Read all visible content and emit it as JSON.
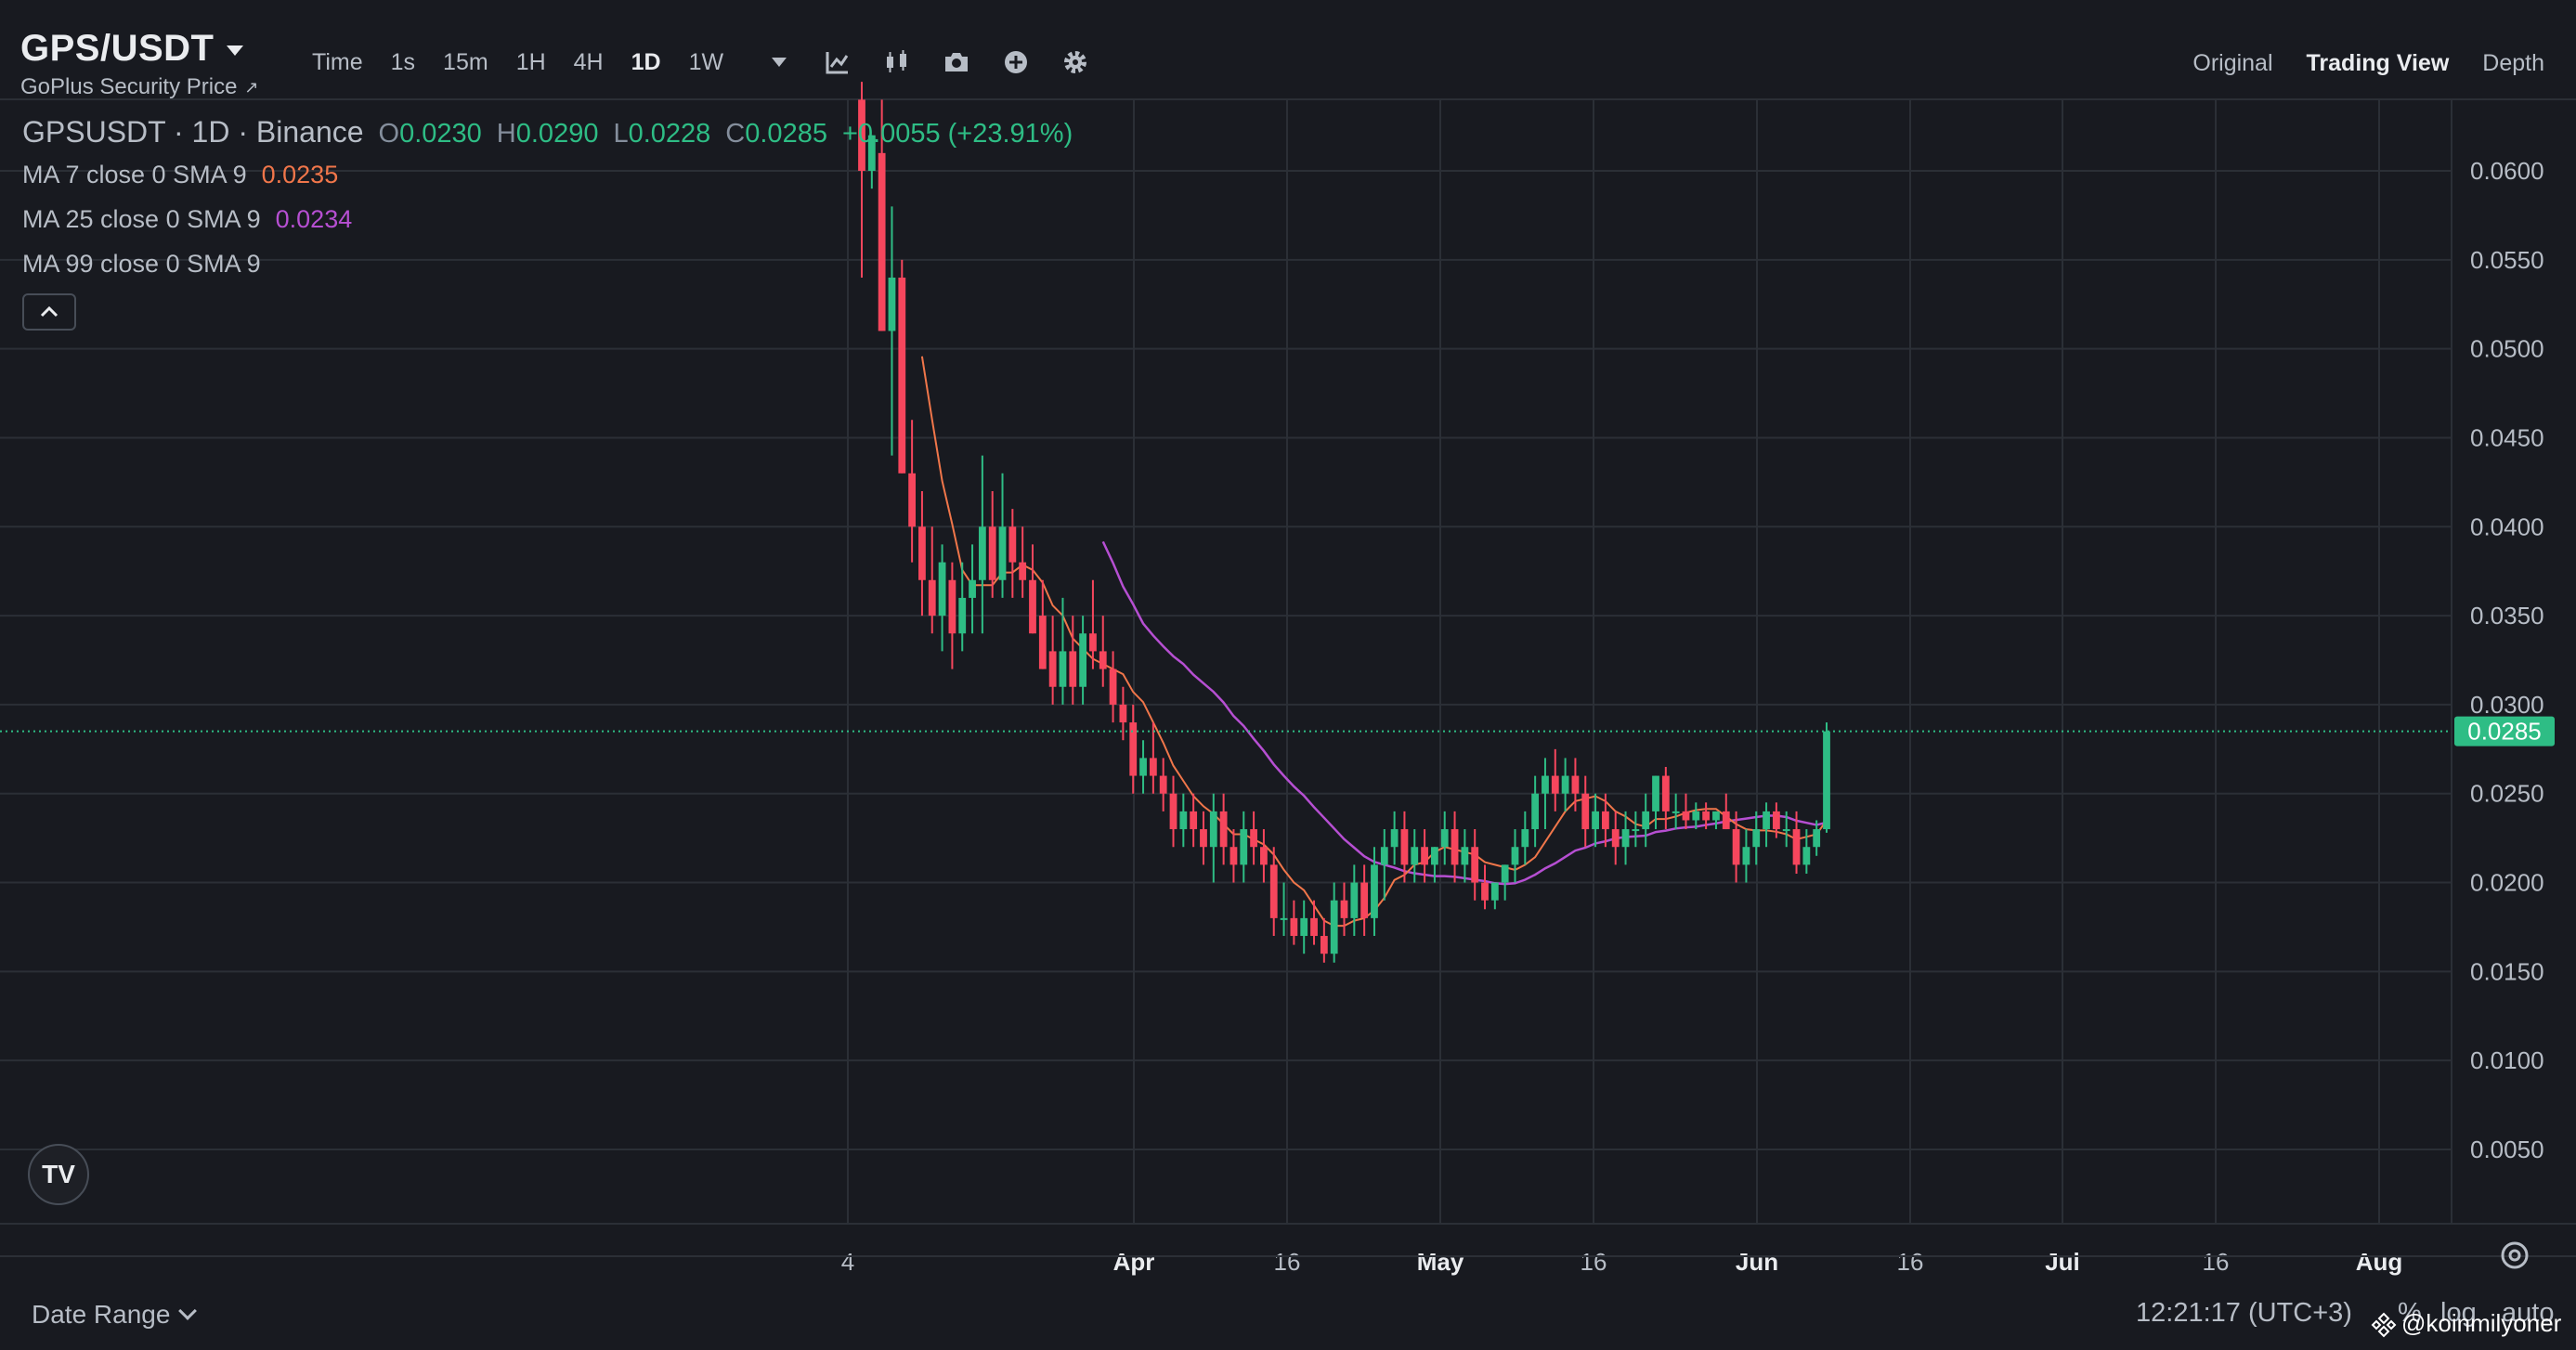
{
  "header": {
    "symbol": "GPS/USDT",
    "subtitle": "GoPlus Security Price",
    "intervals": [
      {
        "label": "Time",
        "active": false
      },
      {
        "label": "1s",
        "active": false
      },
      {
        "label": "15m",
        "active": false
      },
      {
        "label": "1H",
        "active": false
      },
      {
        "label": "4H",
        "active": false
      },
      {
        "label": "1D",
        "active": true
      },
      {
        "label": "1W",
        "active": false
      }
    ],
    "tool_icons": [
      "indicator-icon",
      "candle-type-icon",
      "camera-icon",
      "plus-circle-icon",
      "gear-icon"
    ],
    "views": [
      {
        "label": "Original",
        "active": false
      },
      {
        "label": "Trading View",
        "active": true
      },
      {
        "label": "Depth",
        "active": false
      }
    ]
  },
  "legend": {
    "title": "GPSUSDT · 1D · Binance",
    "o_label": "O",
    "o_value": "0.0230",
    "h_label": "H",
    "h_value": "0.0290",
    "l_label": "L",
    "l_value": "0.0228",
    "c_label": "C",
    "c_value": "0.0285",
    "change": "+0.0055 (+23.91%)",
    "ma": [
      {
        "label": "MA 7 close 0 SMA 9",
        "value": "0.0235",
        "color": "#f0764a"
      },
      {
        "label": "MA 25 close 0 SMA 9",
        "value": "0.0234",
        "color": "#b64fd2"
      },
      {
        "label": "MA 99 close 0 SMA 9",
        "value": "",
        "color": "#5d8ee8"
      }
    ]
  },
  "chart_data": {
    "type": "candlestick",
    "price_axis": [
      "0.0600",
      "0.0550",
      "0.0500",
      "0.0450",
      "0.0400",
      "0.0350",
      "0.0300",
      "0.0250",
      "0.0200",
      "0.0150",
      "0.0100",
      "0.0050"
    ],
    "time_axis": [
      "4",
      "Apr",
      "16",
      "May",
      "16",
      "Jun",
      "16",
      "Jul",
      "16",
      "Aug"
    ],
    "last_price": "0.0285",
    "colors": {
      "up": "#2ebd85",
      "down": "#f6465d",
      "ma7": "#f0764a",
      "ma25": "#b64fd2"
    },
    "candles": [
      [
        0.064,
        0.065,
        0.054,
        0.06
      ],
      [
        0.06,
        0.062,
        0.059,
        0.062
      ],
      [
        0.061,
        0.064,
        0.051,
        0.051
      ],
      [
        0.051,
        0.058,
        0.044,
        0.054
      ],
      [
        0.054,
        0.055,
        0.043,
        0.043
      ],
      [
        0.043,
        0.046,
        0.038,
        0.04
      ],
      [
        0.04,
        0.042,
        0.035,
        0.037
      ],
      [
        0.037,
        0.04,
        0.034,
        0.035
      ],
      [
        0.035,
        0.039,
        0.033,
        0.038
      ],
      [
        0.037,
        0.038,
        0.032,
        0.034
      ],
      [
        0.034,
        0.038,
        0.033,
        0.036
      ],
      [
        0.036,
        0.039,
        0.034,
        0.037
      ],
      [
        0.037,
        0.044,
        0.034,
        0.04
      ],
      [
        0.04,
        0.042,
        0.036,
        0.037
      ],
      [
        0.037,
        0.043,
        0.036,
        0.04
      ],
      [
        0.04,
        0.041,
        0.036,
        0.038
      ],
      [
        0.038,
        0.04,
        0.036,
        0.037
      ],
      [
        0.037,
        0.039,
        0.034,
        0.034
      ],
      [
        0.035,
        0.037,
        0.032,
        0.032
      ],
      [
        0.033,
        0.035,
        0.03,
        0.031
      ],
      [
        0.031,
        0.036,
        0.03,
        0.033
      ],
      [
        0.033,
        0.035,
        0.03,
        0.031
      ],
      [
        0.031,
        0.035,
        0.03,
        0.034
      ],
      [
        0.034,
        0.037,
        0.032,
        0.033
      ],
      [
        0.033,
        0.035,
        0.031,
        0.032
      ],
      [
        0.032,
        0.033,
        0.029,
        0.03
      ],
      [
        0.03,
        0.031,
        0.028,
        0.029
      ],
      [
        0.029,
        0.03,
        0.025,
        0.026
      ],
      [
        0.026,
        0.028,
        0.025,
        0.027
      ],
      [
        0.027,
        0.029,
        0.025,
        0.026
      ],
      [
        0.026,
        0.027,
        0.024,
        0.025
      ],
      [
        0.025,
        0.026,
        0.022,
        0.023
      ],
      [
        0.023,
        0.025,
        0.022,
        0.024
      ],
      [
        0.024,
        0.025,
        0.022,
        0.023
      ],
      [
        0.023,
        0.024,
        0.021,
        0.022
      ],
      [
        0.022,
        0.025,
        0.02,
        0.024
      ],
      [
        0.024,
        0.025,
        0.021,
        0.022
      ],
      [
        0.022,
        0.023,
        0.02,
        0.021
      ],
      [
        0.021,
        0.024,
        0.02,
        0.023
      ],
      [
        0.023,
        0.024,
        0.021,
        0.022
      ],
      [
        0.022,
        0.023,
        0.02,
        0.021
      ],
      [
        0.021,
        0.022,
        0.017,
        0.018
      ],
      [
        0.018,
        0.02,
        0.017,
        0.018
      ],
      [
        0.018,
        0.019,
        0.0165,
        0.017
      ],
      [
        0.017,
        0.019,
        0.016,
        0.018
      ],
      [
        0.018,
        0.019,
        0.0165,
        0.017
      ],
      [
        0.017,
        0.018,
        0.0155,
        0.016
      ],
      [
        0.016,
        0.02,
        0.0155,
        0.019
      ],
      [
        0.019,
        0.02,
        0.017,
        0.018
      ],
      [
        0.018,
        0.021,
        0.017,
        0.02
      ],
      [
        0.02,
        0.021,
        0.017,
        0.018
      ],
      [
        0.018,
        0.022,
        0.017,
        0.021
      ],
      [
        0.021,
        0.023,
        0.019,
        0.022
      ],
      [
        0.022,
        0.024,
        0.021,
        0.023
      ],
      [
        0.023,
        0.024,
        0.02,
        0.021
      ],
      [
        0.021,
        0.023,
        0.02,
        0.022
      ],
      [
        0.022,
        0.023,
        0.02,
        0.021
      ],
      [
        0.021,
        0.022,
        0.02,
        0.022
      ],
      [
        0.022,
        0.024,
        0.021,
        0.023
      ],
      [
        0.023,
        0.024,
        0.02,
        0.021
      ],
      [
        0.021,
        0.023,
        0.02,
        0.022
      ],
      [
        0.022,
        0.023,
        0.019,
        0.02
      ],
      [
        0.02,
        0.021,
        0.0185,
        0.019
      ],
      [
        0.019,
        0.02,
        0.0185,
        0.02
      ],
      [
        0.02,
        0.021,
        0.019,
        0.021
      ],
      [
        0.021,
        0.023,
        0.02,
        0.022
      ],
      [
        0.022,
        0.024,
        0.021,
        0.023
      ],
      [
        0.023,
        0.026,
        0.022,
        0.025
      ],
      [
        0.025,
        0.027,
        0.023,
        0.026
      ],
      [
        0.026,
        0.0275,
        0.024,
        0.025
      ],
      [
        0.025,
        0.027,
        0.024,
        0.026
      ],
      [
        0.026,
        0.027,
        0.024,
        0.025
      ],
      [
        0.025,
        0.026,
        0.022,
        0.023
      ],
      [
        0.023,
        0.025,
        0.022,
        0.024
      ],
      [
        0.024,
        0.025,
        0.022,
        0.023
      ],
      [
        0.023,
        0.024,
        0.021,
        0.022
      ],
      [
        0.022,
        0.024,
        0.021,
        0.023
      ],
      [
        0.023,
        0.024,
        0.022,
        0.023
      ],
      [
        0.023,
        0.025,
        0.022,
        0.024
      ],
      [
        0.024,
        0.026,
        0.023,
        0.026
      ],
      [
        0.026,
        0.0265,
        0.023,
        0.024
      ],
      [
        0.024,
        0.025,
        0.023,
        0.024
      ],
      [
        0.024,
        0.025,
        0.023,
        0.0235
      ],
      [
        0.0235,
        0.0245,
        0.023,
        0.024
      ],
      [
        0.024,
        0.0245,
        0.023,
        0.0235
      ],
      [
        0.0235,
        0.024,
        0.023,
        0.024
      ],
      [
        0.024,
        0.025,
        0.023,
        0.023
      ],
      [
        0.023,
        0.024,
        0.02,
        0.021
      ],
      [
        0.021,
        0.023,
        0.02,
        0.022
      ],
      [
        0.022,
        0.024,
        0.021,
        0.023
      ],
      [
        0.023,
        0.0245,
        0.022,
        0.024
      ],
      [
        0.024,
        0.0245,
        0.0225,
        0.023
      ],
      [
        0.023,
        0.024,
        0.022,
        0.023
      ],
      [
        0.023,
        0.024,
        0.0205,
        0.021
      ],
      [
        0.021,
        0.023,
        0.0205,
        0.022
      ],
      [
        0.022,
        0.0235,
        0.0215,
        0.023
      ],
      [
        0.023,
        0.029,
        0.0228,
        0.0285
      ]
    ]
  },
  "footer": {
    "date_range": "Date Range",
    "clock": "12:21:17 (UTC+3)",
    "pct": "%",
    "log": "log",
    "auto": "auto",
    "watermark": "@koinmilyoner"
  },
  "tv_logo": "TV"
}
